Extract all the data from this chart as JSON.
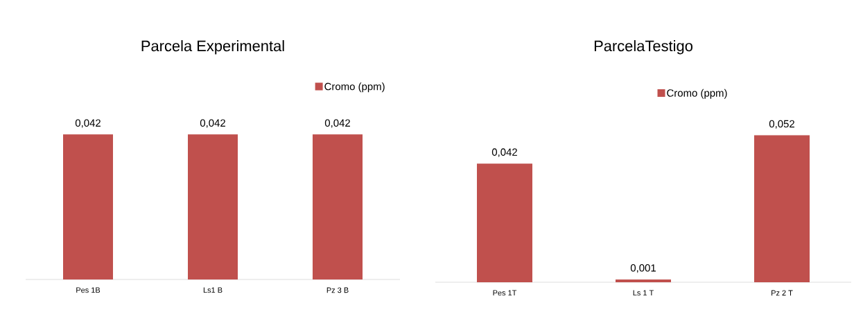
{
  "chart_data": [
    {
      "type": "bar",
      "title": "Parcela  Experimental",
      "categories": [
        "Pes 1B",
        "Ls1 B",
        "Pz 3 B"
      ],
      "legend": "top right",
      "series": [
        {
          "name": "Cromo (ppm)",
          "color": "#c0504d",
          "values": [
            0.042,
            0.042,
            0.042
          ],
          "value_labels": [
            "0,042",
            "0,042",
            "0,042"
          ]
        }
      ]
    },
    {
      "type": "bar",
      "title": "ParcelaTestigo",
      "categories": [
        "Pes 1T",
        "Ls 1 T",
        "Pz 2 T"
      ],
      "legend": "top",
      "series": [
        {
          "name": "Cromo (ppm)",
          "color": "#c0504d",
          "values": [
            0.042,
            0.001,
            0.052
          ],
          "value_labels": [
            "0,042",
            "0,001",
            "0,052"
          ]
        }
      ]
    }
  ]
}
